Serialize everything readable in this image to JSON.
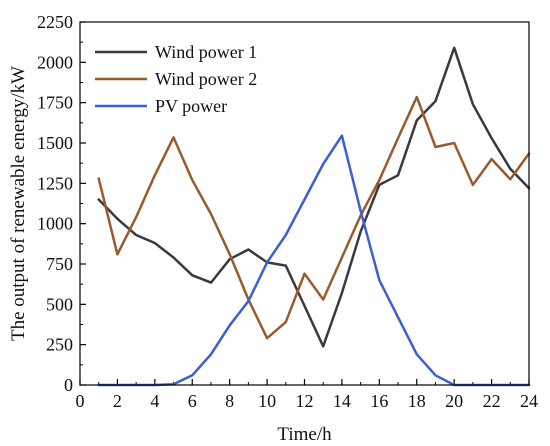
{
  "chart_data": {
    "type": "line",
    "xlabel": "Time/h",
    "ylabel": "The output of renewable energy/kW",
    "xlim": [
      0,
      24
    ],
    "ylim": [
      0,
      2250
    ],
    "xticks": [
      0,
      2,
      4,
      6,
      8,
      10,
      12,
      14,
      16,
      18,
      20,
      22,
      24
    ],
    "yticks": [
      0,
      250,
      500,
      750,
      1000,
      1250,
      1500,
      1750,
      2000,
      2250
    ],
    "grid": false,
    "legend_position": "top-left",
    "x": [
      1,
      2,
      3,
      4,
      5,
      6,
      7,
      8,
      9,
      10,
      11,
      12,
      13,
      14,
      15,
      16,
      17,
      18,
      19,
      20,
      21,
      22,
      23,
      24
    ],
    "series": [
      {
        "name": "Wind power 1",
        "color": "#3a3a3a",
        "values": [
          1150,
          1030,
          930,
          880,
          790,
          680,
          635,
          780,
          840,
          760,
          740,
          490,
          240,
          570,
          950,
          1240,
          1300,
          1640,
          1760,
          2090,
          1740,
          1530,
          1340,
          1220
        ]
      },
      {
        "name": "Wind power 2",
        "color": "#9a5a2e",
        "values": [
          1280,
          810,
          1040,
          1300,
          1535,
          1270,
          1060,
          810,
          530,
          290,
          390,
          690,
          530,
          790,
          1050,
          1270,
          1530,
          1785,
          1475,
          1500,
          1240,
          1400,
          1275,
          1435
        ]
      },
      {
        "name": "PV power",
        "color": "#3a5fd6",
        "values": [
          0,
          0,
          0,
          0,
          5,
          60,
          190,
          370,
          520,
          760,
          930,
          1150,
          1370,
          1545,
          1080,
          650,
          420,
          190,
          60,
          0,
          0,
          0,
          0,
          0
        ]
      }
    ]
  }
}
